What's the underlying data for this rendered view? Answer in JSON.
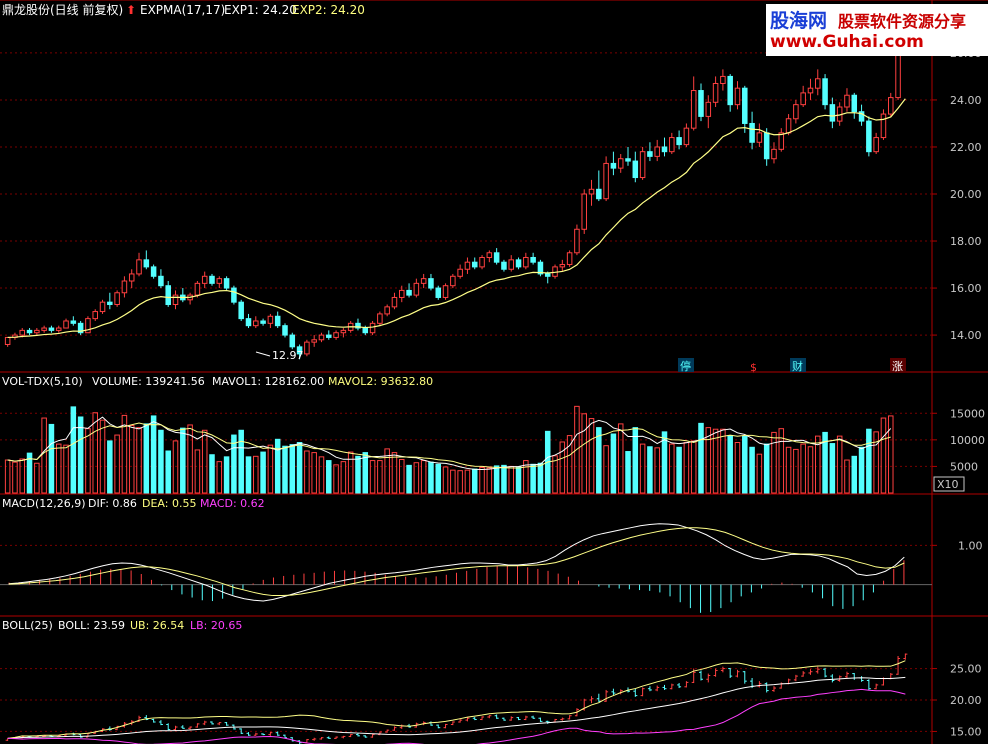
{
  "colors": {
    "up": "#ff4040",
    "down": "#54ffff",
    "grid": "#7a0000",
    "ema1": "#ffffff",
    "ema2": "#ffff88",
    "vol": "#ffffff",
    "macd_label": "#ff40ff",
    "lb": "#ff40ff",
    "axis_text": "#c8c8c8"
  },
  "header": {
    "stock_name": "鼎龙股份(日线 前复权)",
    "expma_label": "EXPMA(17,17)",
    "exp1_text": "EXP1: 24.20",
    "exp2_text": "EXP2: 24.20"
  },
  "brand": {
    "name": "股海网",
    "slogan": "股票软件资源分享",
    "url": "www.Guhai.com"
  },
  "badges": {
    "stop": "停",
    "dollar": "$",
    "finance": "财",
    "rise": "涨"
  },
  "panels": {
    "price": {
      "ticks": [
        "26.00",
        "24.00",
        "22.00",
        "20.00",
        "18.00",
        "16.00",
        "14.00"
      ],
      "low_marker": "12.97"
    },
    "volume": {
      "header": "VOL-TDX(5,10)",
      "volume_text": "VOLUME: 139241.56",
      "mavol1_text": "MAVOL1: 128162.00",
      "mavol2_text": "MAVOL2: 93632.80",
      "ticks": [
        "15000",
        "10000",
        "5000"
      ],
      "unit": "X10"
    },
    "macd": {
      "header": "MACD(12,26,9)",
      "dif_text": "DIF: 0.86",
      "dea_text": "DEA: 0.55",
      "macd_text": "MACD: 0.62",
      "ticks": [
        "1.00"
      ]
    },
    "boll": {
      "header": "BOLL(25)",
      "boll_text": "BOLL: 23.59",
      "ub_text": "UB: 26.54",
      "lb_text": "LB: 20.65",
      "ticks": [
        "25.00",
        "20.00",
        "15.00"
      ]
    }
  },
  "chart_data": {
    "type": "candlestick",
    "price_range": [
      12.6,
      27.4
    ],
    "candles": [
      [
        13.6,
        13.9,
        13.5,
        13.9
      ],
      [
        13.9,
        14.1,
        13.8,
        14.0
      ],
      [
        14.0,
        14.3,
        13.9,
        14.2
      ],
      [
        14.2,
        14.3,
        14.0,
        14.1
      ],
      [
        14.1,
        14.3,
        14.0,
        14.2
      ],
      [
        14.2,
        14.4,
        14.1,
        14.3
      ],
      [
        14.3,
        14.4,
        14.1,
        14.2
      ],
      [
        14.2,
        14.4,
        14.1,
        14.3
      ],
      [
        14.3,
        14.7,
        14.3,
        14.6
      ],
      [
        14.6,
        14.8,
        14.4,
        14.5
      ],
      [
        14.5,
        14.6,
        14.0,
        14.1
      ],
      [
        14.1,
        14.8,
        14.1,
        14.7
      ],
      [
        14.7,
        15.1,
        14.6,
        15.0
      ],
      [
        15.0,
        15.5,
        14.9,
        15.4
      ],
      [
        15.4,
        15.8,
        15.1,
        15.3
      ],
      [
        15.3,
        15.9,
        15.2,
        15.8
      ],
      [
        15.8,
        16.5,
        15.6,
        16.3
      ],
      [
        16.3,
        16.8,
        16.0,
        16.6
      ],
      [
        16.6,
        17.5,
        16.5,
        17.2
      ],
      [
        17.2,
        17.6,
        16.8,
        16.9
      ],
      [
        16.9,
        17.0,
        16.4,
        16.5
      ],
      [
        16.5,
        16.8,
        16.0,
        16.1
      ],
      [
        16.1,
        16.3,
        15.2,
        15.3
      ],
      [
        15.3,
        15.9,
        15.1,
        15.7
      ],
      [
        15.7,
        16.0,
        15.4,
        15.5
      ],
      [
        15.5,
        15.8,
        15.3,
        15.7
      ],
      [
        15.7,
        16.3,
        15.6,
        16.2
      ],
      [
        16.2,
        16.7,
        16.0,
        16.5
      ],
      [
        16.5,
        16.6,
        16.1,
        16.2
      ],
      [
        16.2,
        16.5,
        16.0,
        16.4
      ],
      [
        16.4,
        16.5,
        15.9,
        16.0
      ],
      [
        16.0,
        16.1,
        15.3,
        15.4
      ],
      [
        15.4,
        15.5,
        14.6,
        14.7
      ],
      [
        14.7,
        14.9,
        14.3,
        14.4
      ],
      [
        14.4,
        14.8,
        14.3,
        14.6
      ],
      [
        14.6,
        14.7,
        14.4,
        14.5
      ],
      [
        14.5,
        14.9,
        14.3,
        14.8
      ],
      [
        14.8,
        15.0,
        14.3,
        14.4
      ],
      [
        14.4,
        14.5,
        13.9,
        14.0
      ],
      [
        14.0,
        14.1,
        13.4,
        13.5
      ],
      [
        13.5,
        13.6,
        12.97,
        13.2
      ],
      [
        13.2,
        13.8,
        13.1,
        13.7
      ],
      [
        13.7,
        14.0,
        13.5,
        13.8
      ],
      [
        13.8,
        14.1,
        13.7,
        14.0
      ],
      [
        14.0,
        14.2,
        13.8,
        13.9
      ],
      [
        13.9,
        14.2,
        13.8,
        14.1
      ],
      [
        14.1,
        14.3,
        13.9,
        14.2
      ],
      [
        14.2,
        14.6,
        14.1,
        14.5
      ],
      [
        14.5,
        14.7,
        14.2,
        14.3
      ],
      [
        14.3,
        14.4,
        14.0,
        14.1
      ],
      [
        14.1,
        14.6,
        14.0,
        14.5
      ],
      [
        14.5,
        15.0,
        14.4,
        14.9
      ],
      [
        14.9,
        15.3,
        14.8,
        15.2
      ],
      [
        15.2,
        15.8,
        15.1,
        15.6
      ],
      [
        15.6,
        16.1,
        15.4,
        15.9
      ],
      [
        15.9,
        16.2,
        15.6,
        15.7
      ],
      [
        15.7,
        16.4,
        15.6,
        16.2
      ],
      [
        16.2,
        16.6,
        16.0,
        16.4
      ],
      [
        16.4,
        16.6,
        15.9,
        16.0
      ],
      [
        16.0,
        16.1,
        15.5,
        15.6
      ],
      [
        15.6,
        16.2,
        15.5,
        16.1
      ],
      [
        16.1,
        16.6,
        16.0,
        16.5
      ],
      [
        16.5,
        17.0,
        16.4,
        16.8
      ],
      [
        16.8,
        17.3,
        16.6,
        17.1
      ],
      [
        17.1,
        17.3,
        16.8,
        16.9
      ],
      [
        16.9,
        17.4,
        16.8,
        17.3
      ],
      [
        17.3,
        17.6,
        17.1,
        17.5
      ],
      [
        17.5,
        17.7,
        17.0,
        17.1
      ],
      [
        17.1,
        17.2,
        16.7,
        16.8
      ],
      [
        16.8,
        17.4,
        16.7,
        17.2
      ],
      [
        17.2,
        17.3,
        16.8,
        16.9
      ],
      [
        16.9,
        17.5,
        16.8,
        17.3
      ],
      [
        17.3,
        17.5,
        17.0,
        17.1
      ],
      [
        17.1,
        17.2,
        16.5,
        16.6
      ],
      [
        16.6,
        16.7,
        16.2,
        16.5
      ],
      [
        16.5,
        17.0,
        16.4,
        16.9
      ],
      [
        16.9,
        17.2,
        16.7,
        17.0
      ],
      [
        17.0,
        17.6,
        16.9,
        17.5
      ],
      [
        17.5,
        18.7,
        17.4,
        18.5
      ],
      [
        18.5,
        20.2,
        18.3,
        20.0
      ],
      [
        20.0,
        20.6,
        19.5,
        20.2
      ],
      [
        20.2,
        21.0,
        19.7,
        19.8
      ],
      [
        19.8,
        21.6,
        19.7,
        21.3
      ],
      [
        21.3,
        21.8,
        20.8,
        21.1
      ],
      [
        21.1,
        21.7,
        20.9,
        21.5
      ],
      [
        21.5,
        22.0,
        21.2,
        21.4
      ],
      [
        21.4,
        21.8,
        20.5,
        20.7
      ],
      [
        20.7,
        22.0,
        20.6,
        21.8
      ],
      [
        21.8,
        22.2,
        21.4,
        21.6
      ],
      [
        21.6,
        22.3,
        21.4,
        22.0
      ],
      [
        22.0,
        22.4,
        21.6,
        21.8
      ],
      [
        21.8,
        22.6,
        21.7,
        22.4
      ],
      [
        22.4,
        22.7,
        21.9,
        22.1
      ],
      [
        22.1,
        23.0,
        22.0,
        22.8
      ],
      [
        22.8,
        25.0,
        22.7,
        24.4
      ],
      [
        24.4,
        24.7,
        23.1,
        23.3
      ],
      [
        23.3,
        24.2,
        22.8,
        23.9
      ],
      [
        23.9,
        25.0,
        23.7,
        24.7
      ],
      [
        24.7,
        25.3,
        24.4,
        25.0
      ],
      [
        25.0,
        25.1,
        23.5,
        23.8
      ],
      [
        23.8,
        24.8,
        23.6,
        24.5
      ],
      [
        24.5,
        24.6,
        22.6,
        23.0
      ],
      [
        23.0,
        23.5,
        21.9,
        22.2
      ],
      [
        22.2,
        23.0,
        22.0,
        22.6
      ],
      [
        22.6,
        22.8,
        21.2,
        21.5
      ],
      [
        21.5,
        22.2,
        21.3,
        21.9
      ],
      [
        21.9,
        22.8,
        21.8,
        22.6
      ],
      [
        22.6,
        23.4,
        22.5,
        23.2
      ],
      [
        23.2,
        24.0,
        23.0,
        23.8
      ],
      [
        23.8,
        24.6,
        23.7,
        24.3
      ],
      [
        24.3,
        24.9,
        24.0,
        24.5
      ],
      [
        24.5,
        25.3,
        24.2,
        24.9
      ],
      [
        24.9,
        25.1,
        23.6,
        23.8
      ],
      [
        23.8,
        24.1,
        22.8,
        23.1
      ],
      [
        23.1,
        23.9,
        22.9,
        23.7
      ],
      [
        23.7,
        24.5,
        23.5,
        24.2
      ],
      [
        24.2,
        24.3,
        23.2,
        23.5
      ],
      [
        23.5,
        23.8,
        22.9,
        23.1
      ],
      [
        23.1,
        23.3,
        21.6,
        21.8
      ],
      [
        21.8,
        22.6,
        21.7,
        22.4
      ],
      [
        22.4,
        23.6,
        22.3,
        23.4
      ],
      [
        23.4,
        24.3,
        23.3,
        24.1
      ],
      [
        24.1,
        27.0,
        24.0,
        26.6
      ],
      [
        26.6,
        27.4,
        26.4,
        27.3
      ]
    ],
    "ema_note_values_end": 24.2,
    "volume": {
      "range_max": 19000,
      "bars": [
        6200,
        5800,
        6400,
        7500,
        5600,
        14100,
        12900,
        9200,
        9000,
        16200,
        14300,
        12100,
        15100,
        13700,
        9800,
        10900,
        14600,
        12700,
        12300,
        13000,
        14500,
        11800,
        7900,
        9800,
        12200,
        12800,
        8100,
        11800,
        7200,
        5900,
        6800,
        10900,
        11800,
        6800,
        6900,
        7700,
        9000,
        10100,
        8800,
        9100,
        9500,
        7900,
        7600,
        6800,
        6100,
        5300,
        5900,
        7700,
        6900,
        7600,
        6100,
        6100,
        8300,
        7600,
        6300,
        5200,
        5700,
        6100,
        5800,
        5400,
        4900,
        4300,
        4200,
        4300,
        4500,
        4800,
        4700,
        5100,
        5200,
        5000,
        4900,
        6100,
        5400,
        5600,
        11600,
        7000,
        9600,
        10800,
        16300,
        14900,
        14000,
        12300,
        8900,
        11100,
        13000,
        7800,
        12300,
        9200,
        8700,
        8500,
        11500,
        9200,
        8600,
        9500,
        9800,
        13100,
        12300,
        12000,
        12000,
        10800,
        9500,
        10700,
        8600,
        7300,
        9200,
        11400,
        12100,
        8600,
        8200,
        9200,
        8700,
        10700,
        11400,
        9300,
        10700,
        6200,
        6900,
        8600,
        12000,
        11500,
        14100,
        14500
      ],
      "mavol1_end": 128162,
      "mavol2_end": 93632.8
    },
    "macd": {
      "range": [
        -0.75,
        1.85
      ],
      "dif": [
        0.02,
        0.04,
        0.07,
        0.1,
        0.13,
        0.17,
        0.22,
        0.28,
        0.35,
        0.42,
        0.48,
        0.53,
        0.55,
        0.54,
        0.5,
        0.44,
        0.37,
        0.3,
        0.22,
        0.14,
        0.06,
        -0.02,
        -0.12,
        -0.22,
        -0.3,
        -0.36,
        -0.4,
        -0.42,
        -0.38,
        -0.32,
        -0.25,
        -0.18,
        -0.11,
        -0.04,
        0.03,
        0.08,
        0.13,
        0.17,
        0.22,
        0.25,
        0.28,
        0.3,
        0.33,
        0.36,
        0.4,
        0.44,
        0.47,
        0.5,
        0.53,
        0.55,
        0.55,
        0.54,
        0.53,
        0.5,
        0.5,
        0.52,
        0.55,
        0.61,
        0.72,
        0.88,
        1.02,
        1.14,
        1.24,
        1.3,
        1.35,
        1.4,
        1.45,
        1.5,
        1.53,
        1.55,
        1.54,
        1.52,
        1.45,
        1.37,
        1.27,
        1.14,
        0.99,
        0.87,
        0.77,
        0.68,
        0.64,
        0.67,
        0.72,
        0.77,
        0.77,
        0.76,
        0.73,
        0.66,
        0.55,
        0.45,
        0.27,
        0.23,
        0.26,
        0.34,
        0.48,
        0.7
      ],
      "dea": [
        0.01,
        0.02,
        0.04,
        0.06,
        0.08,
        0.1,
        0.13,
        0.16,
        0.2,
        0.25,
        0.3,
        0.35,
        0.39,
        0.43,
        0.45,
        0.45,
        0.43,
        0.39,
        0.34,
        0.28,
        0.22,
        0.15,
        0.08,
        0.0,
        -0.08,
        -0.14,
        -0.2,
        -0.25,
        -0.28,
        -0.28,
        -0.27,
        -0.24,
        -0.2,
        -0.15,
        -0.1,
        -0.05,
        0.0,
        0.05,
        0.1,
        0.14,
        0.18,
        0.21,
        0.24,
        0.27,
        0.3,
        0.33,
        0.36,
        0.39,
        0.42,
        0.44,
        0.46,
        0.47,
        0.48,
        0.48,
        0.48,
        0.49,
        0.5,
        0.52,
        0.56,
        0.63,
        0.71,
        0.8,
        0.89,
        0.98,
        1.06,
        1.13,
        1.2,
        1.26,
        1.31,
        1.36,
        1.4,
        1.43,
        1.45,
        1.45,
        1.43,
        1.39,
        1.33,
        1.24,
        1.14,
        1.04,
        0.95,
        0.88,
        0.83,
        0.8,
        0.78,
        0.78,
        0.77,
        0.75,
        0.71,
        0.66,
        0.58,
        0.52,
        0.45,
        0.42,
        0.44,
        0.55
      ],
      "hist": [
        0.05,
        0.06,
        0.09,
        0.12,
        0.14,
        0.17,
        0.22,
        0.27,
        0.33,
        0.38,
        0.4,
        0.4,
        0.36,
        0.27,
        0.12,
        -0.02,
        -0.14,
        -0.25,
        -0.33,
        -0.4,
        -0.42,
        -0.36,
        -0.26,
        -0.12,
        0.03,
        0.12,
        0.18,
        0.22,
        0.25,
        0.28,
        0.3,
        0.33,
        0.35,
        0.36,
        0.35,
        0.33,
        0.3,
        0.25,
        0.22,
        0.2,
        0.18,
        0.18,
        0.21,
        0.25,
        0.3,
        0.35,
        0.4,
        0.45,
        0.48,
        0.48,
        0.47,
        0.44,
        0.4,
        0.35,
        0.28,
        0.2,
        0.1,
        0.0,
        -0.05,
        -0.08,
        -0.1,
        -0.12,
        -0.14,
        -0.16,
        -0.2,
        -0.3,
        -0.45,
        -0.6,
        -0.72,
        -0.7,
        -0.6,
        -0.45,
        -0.3,
        -0.2,
        -0.1,
        0.02,
        0.05,
        0.02,
        -0.08,
        -0.2,
        -0.35,
        -0.55,
        -0.62,
        -0.55,
        -0.4,
        -0.2,
        0.1,
        0.4,
        0.62
      ]
    },
    "boll": {
      "range": [
        13.0,
        30.5
      ]
    }
  }
}
